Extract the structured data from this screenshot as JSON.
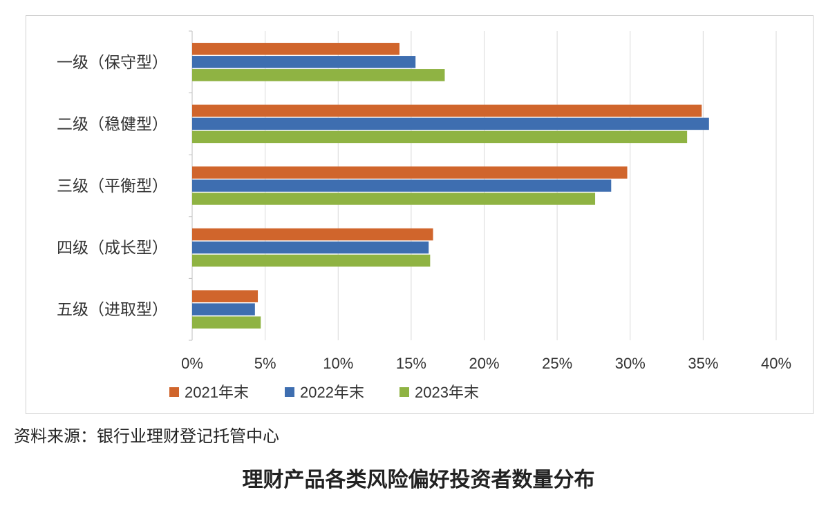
{
  "figure": {
    "source_note": "资料来源：银行业理财登记托管中心",
    "caption": "理财产品各类风险偏好投资者数量分布"
  },
  "chart_data": {
    "type": "bar",
    "orientation": "horizontal",
    "categories": [
      "一级（保守型）",
      "二级（稳健型）",
      "三级（平衡型）",
      "四级（成长型）",
      "五级（进取型）"
    ],
    "series": [
      {
        "name": "2021年末",
        "color": "#d0652c",
        "values": [
          14.2,
          34.9,
          29.8,
          16.5,
          4.5
        ]
      },
      {
        "name": "2022年末",
        "color": "#3e6eb0",
        "values": [
          15.3,
          35.4,
          28.7,
          16.2,
          4.3
        ]
      },
      {
        "name": "2023年末",
        "color": "#8fb343",
        "values": [
          17.3,
          33.9,
          27.6,
          16.3,
          4.7
        ]
      }
    ],
    "xlim": [
      0,
      40
    ],
    "x_ticks": [
      "0%",
      "5%",
      "10%",
      "15%",
      "20%",
      "25%",
      "30%",
      "35%",
      "40%"
    ],
    "x_tick_values": [
      0,
      5,
      10,
      15,
      20,
      25,
      30,
      35,
      40
    ],
    "grid": "vertical",
    "legend": "bottom"
  }
}
